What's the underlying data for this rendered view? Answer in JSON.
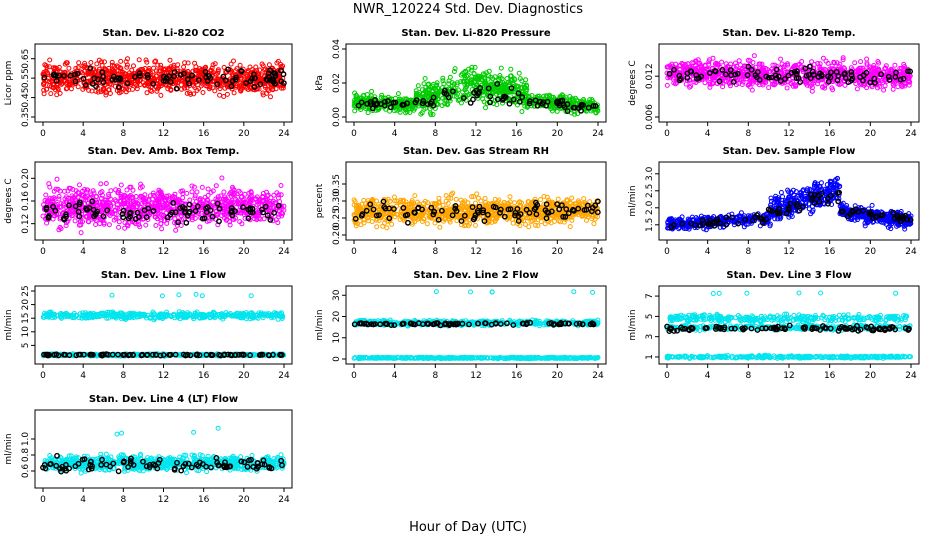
{
  "page": {
    "title": "NWR_120224  Std. Dev. Diagnostics",
    "xlabel": "Hour of Day (UTC)"
  },
  "colors": {
    "red": "#ff0000",
    "green": "#00cc00",
    "magenta": "#ff00ff",
    "orange": "#ffa500",
    "blue": "#0000ff",
    "cyan": "#00e5ee",
    "black": "#000000"
  },
  "chart_data": [
    {
      "type": "scatter",
      "title": "Stan. Dev. Li-820 CO2",
      "ylabel": "Licor ppm",
      "xlim": [
        0,
        24
      ],
      "ylim": [
        0.35,
        0.7
      ],
      "xticks": [
        "0",
        "4",
        "8",
        "12",
        "16",
        "20",
        "24"
      ],
      "yticks": [
        "0.35",
        "0.45",
        "0.55",
        "0.65"
      ],
      "series": [
        {
          "name": "all",
          "color": "#ff0000",
          "count": 900,
          "segments": [
            {
              "x": [
                0,
                24
              ],
              "y": [
                0.55,
                0.55
              ],
              "spread": 0.05
            }
          ]
        },
        {
          "name": "hourly",
          "color": "#000000",
          "count": 90,
          "segments": [
            {
              "x": [
                0,
                24
              ],
              "y": [
                0.55,
                0.55
              ],
              "spread": 0.035
            }
          ]
        }
      ]
    },
    {
      "type": "scatter",
      "title": "Stan. Dev. Li-820 Pressure",
      "ylabel": "kPa",
      "xlim": [
        0,
        24
      ],
      "ylim": [
        0,
        0.04
      ],
      "xticks": [
        "0",
        "4",
        "8",
        "12",
        "16",
        "20",
        "24"
      ],
      "yticks": [
        "0.00",
        "0.02",
        "0.04"
      ],
      "series": [
        {
          "name": "all",
          "color": "#00cc00",
          "count": 900,
          "segments": [
            {
              "x": [
                0,
                6
              ],
              "y": [
                0.009,
                0.007
              ],
              "spread": 0.003
            },
            {
              "x": [
                6,
                12
              ],
              "y": [
                0.009,
                0.022
              ],
              "spread": 0.006
            },
            {
              "x": [
                12,
                17
              ],
              "y": [
                0.018,
                0.014
              ],
              "spread": 0.006
            },
            {
              "x": [
                17,
                24
              ],
              "y": [
                0.01,
                0.006
              ],
              "spread": 0.003
            }
          ]
        },
        {
          "name": "hourly",
          "color": "#000000",
          "count": 90,
          "segments": [
            {
              "x": [
                0,
                8
              ],
              "y": [
                0.008,
                0.008
              ],
              "spread": 0.002
            },
            {
              "x": [
                8,
                17
              ],
              "y": [
                0.012,
                0.014
              ],
              "spread": 0.004
            },
            {
              "x": [
                17,
                24
              ],
              "y": [
                0.008,
                0.006
              ],
              "spread": 0.002
            }
          ]
        }
      ]
    },
    {
      "type": "scatter",
      "title": "Stan. Dev. Li-820 Temp.",
      "ylabel": "degrees C",
      "xlim": [
        0,
        24
      ],
      "ylim": [
        0.006,
        0.016
      ],
      "xticks": [
        "0",
        "4",
        "8",
        "12",
        "16",
        "20",
        "24"
      ],
      "yticks": [
        "0.006",
        "0.012"
      ],
      "series": [
        {
          "name": "all",
          "color": "#ff00ff",
          "count": 900,
          "segments": [
            {
              "x": [
                0,
                24
              ],
              "y": [
                0.0125,
                0.012
              ],
              "spread": 0.0012
            }
          ]
        },
        {
          "name": "hourly",
          "color": "#000000",
          "count": 90,
          "segments": [
            {
              "x": [
                0,
                24
              ],
              "y": [
                0.0123,
                0.012
              ],
              "spread": 0.0008
            }
          ]
        }
      ]
    },
    {
      "type": "scatter",
      "title": "Stan. Dev. Amb. Box Temp.",
      "ylabel": "degrees C",
      "xlim": [
        0,
        24
      ],
      "ylim": [
        0.1,
        0.22
      ],
      "xticks": [
        "0",
        "4",
        "8",
        "12",
        "16",
        "20",
        "24"
      ],
      "yticks": [
        "0.12",
        "0.16",
        "0.20"
      ],
      "series": [
        {
          "name": "all",
          "color": "#ff00ff",
          "count": 900,
          "segments": [
            {
              "x": [
                0,
                24
              ],
              "y": [
                0.15,
                0.15
              ],
              "spread": 0.022
            }
          ]
        },
        {
          "name": "hourly",
          "color": "#000000",
          "count": 90,
          "segments": [
            {
              "x": [
                0,
                24
              ],
              "y": [
                0.14,
                0.14
              ],
              "spread": 0.012
            }
          ]
        }
      ]
    },
    {
      "type": "scatter",
      "title": "Stan. Dev. Gas Stream RH",
      "ylabel": "percent",
      "xlim": [
        0,
        24
      ],
      "ylim": [
        0.2,
        0.4
      ],
      "xticks": [
        "0",
        "4",
        "8",
        "12",
        "16",
        "20",
        "24"
      ],
      "yticks": [
        "0.20",
        "0.25",
        "0.30",
        "0.35"
      ],
      "series": [
        {
          "name": "all",
          "color": "#ffa500",
          "count": 900,
          "segments": [
            {
              "x": [
                0,
                24
              ],
              "y": [
                0.27,
                0.27
              ],
              "spread": 0.025
            }
          ]
        },
        {
          "name": "hourly",
          "color": "#000000",
          "count": 90,
          "segments": [
            {
              "x": [
                0,
                24
              ],
              "y": [
                0.27,
                0.27
              ],
              "spread": 0.018
            }
          ]
        }
      ]
    },
    {
      "type": "scatter",
      "title": "Stan. Dev. Sample Flow",
      "ylabel": "ml/min",
      "xlim": [
        0,
        24
      ],
      "ylim": [
        1.2,
        3.2
      ],
      "xticks": [
        "0",
        "4",
        "8",
        "12",
        "16",
        "20",
        "24"
      ],
      "yticks": [
        "1.5",
        "2.0",
        "2.5",
        "3.0"
      ],
      "series": [
        {
          "name": "all",
          "color": "#0000ff",
          "count": 900,
          "segments": [
            {
              "x": [
                0,
                10
              ],
              "y": [
                1.5,
                1.7
              ],
              "spread": 0.12
            },
            {
              "x": [
                10,
                17
              ],
              "y": [
                1.9,
                2.6
              ],
              "spread": 0.25
            },
            {
              "x": [
                17,
                24
              ],
              "y": [
                1.9,
                1.6
              ],
              "spread": 0.15
            }
          ]
        },
        {
          "name": "hourly",
          "color": "#000000",
          "count": 90,
          "segments": [
            {
              "x": [
                0,
                10
              ],
              "y": [
                1.5,
                1.7
              ],
              "spread": 0.08
            },
            {
              "x": [
                10,
                17
              ],
              "y": [
                1.9,
                2.4
              ],
              "spread": 0.15
            },
            {
              "x": [
                17,
                24
              ],
              "y": [
                1.9,
                1.7
              ],
              "spread": 0.1
            }
          ]
        }
      ]
    },
    {
      "type": "scatter",
      "title": "Stan. Dev. Line 1 Flow",
      "ylabel": "ml/min",
      "xlim": [
        0,
        24
      ],
      "ylim": [
        0,
        25
      ],
      "xticks": [
        "0",
        "4",
        "8",
        "12",
        "16",
        "20",
        "24"
      ],
      "yticks": [
        "5",
        "10",
        "15",
        "20",
        "25"
      ],
      "series": [
        {
          "name": "all",
          "color": "#00e5ee",
          "count": 900,
          "segments": [
            {
              "x": [
                0,
                24
              ],
              "y": [
                16,
                16
              ],
              "spread": 0.8
            },
            {
              "x": [
                0,
                24
              ],
              "y": [
                1.5,
                1.5
              ],
              "spread": 0.25
            }
          ]
        },
        {
          "name": "hourly",
          "color": "#000000",
          "count": 90,
          "segments": [
            {
              "x": [
                0,
                24
              ],
              "y": [
                1.5,
                1.5
              ],
              "spread": 0.15
            }
          ]
        },
        {
          "name": "outliers",
          "color": "#00e5ee",
          "count": 6,
          "segments": [
            {
              "x": [
                4,
                24
              ],
              "y": [
                23.5,
                23.5
              ],
              "spread": 0.6
            }
          ]
        }
      ]
    },
    {
      "type": "scatter",
      "title": "Stan. Dev. Line 2 Flow",
      "ylabel": "ml/min",
      "xlim": [
        0,
        24
      ],
      "ylim": [
        0,
        32
      ],
      "xticks": [
        "0",
        "4",
        "8",
        "12",
        "16",
        "20",
        "24"
      ],
      "yticks": [
        "0",
        "10",
        "20",
        "30"
      ],
      "series": [
        {
          "name": "all",
          "color": "#00e5ee",
          "count": 900,
          "segments": [
            {
              "x": [
                0,
                24
              ],
              "y": [
                17,
                17
              ],
              "spread": 0.8
            },
            {
              "x": [
                0,
                24
              ],
              "y": [
                0.5,
                0.5
              ],
              "spread": 0.2
            }
          ]
        },
        {
          "name": "hourly",
          "color": "#000000",
          "count": 90,
          "segments": [
            {
              "x": [
                0,
                24
              ],
              "y": [
                16.5,
                16.5
              ],
              "spread": 0.4
            }
          ]
        },
        {
          "name": "outliers",
          "color": "#00e5ee",
          "count": 6,
          "segments": [
            {
              "x": [
                4,
                24
              ],
              "y": [
                31.5,
                31.5
              ],
              "spread": 0.4
            }
          ]
        }
      ]
    },
    {
      "type": "scatter",
      "title": "Stan. Dev. Line 3 Flow",
      "ylabel": "ml/min",
      "xlim": [
        0,
        24
      ],
      "ylim": [
        0.8,
        7.5
      ],
      "xticks": [
        "0",
        "4",
        "8",
        "12",
        "16",
        "20",
        "24"
      ],
      "yticks": [
        "1",
        "3",
        "5",
        "7"
      ],
      "series": [
        {
          "name": "all",
          "color": "#00e5ee",
          "count": 900,
          "segments": [
            {
              "x": [
                0,
                24
              ],
              "y": [
                4.8,
                4.8
              ],
              "spread": 0.25
            },
            {
              "x": [
                0,
                24
              ],
              "y": [
                1.0,
                1.0
              ],
              "spread": 0.08
            },
            {
              "x": [
                0,
                24
              ],
              "y": [
                3.9,
                3.9
              ],
              "spread": 0.15
            }
          ]
        },
        {
          "name": "hourly",
          "color": "#000000",
          "count": 90,
          "segments": [
            {
              "x": [
                0,
                24
              ],
              "y": [
                3.8,
                3.8
              ],
              "spread": 0.15
            }
          ]
        },
        {
          "name": "outliers",
          "color": "#00e5ee",
          "count": 6,
          "segments": [
            {
              "x": [
                4,
                24
              ],
              "y": [
                7.3,
                7.3
              ],
              "spread": 0.1
            }
          ]
        }
      ]
    },
    {
      "type": "scatter",
      "title": "Stan. Dev. Line 4 (LT) Flow",
      "ylabel": "ml/min",
      "xlim": [
        0,
        24
      ],
      "ylim": [
        0.45,
        1.3
      ],
      "xticks": [
        "0",
        "4",
        "8",
        "12",
        "16",
        "20",
        "24"
      ],
      "yticks": [
        "0.6",
        "0.8",
        "1.0"
      ],
      "series": [
        {
          "name": "all",
          "color": "#00e5ee",
          "count": 700,
          "segments": [
            {
              "x": [
                0,
                24
              ],
              "y": [
                0.7,
                0.7
              ],
              "spread": 0.06
            }
          ]
        },
        {
          "name": "hourly",
          "color": "#000000",
          "count": 90,
          "segments": [
            {
              "x": [
                0,
                24
              ],
              "y": [
                0.68,
                0.68
              ],
              "spread": 0.05
            }
          ]
        },
        {
          "name": "outliers",
          "color": "#00e5ee",
          "count": 4,
          "segments": [
            {
              "x": [
                4,
                20
              ],
              "y": [
                1.05,
                1.15
              ],
              "spread": 0.08
            }
          ]
        }
      ]
    }
  ]
}
